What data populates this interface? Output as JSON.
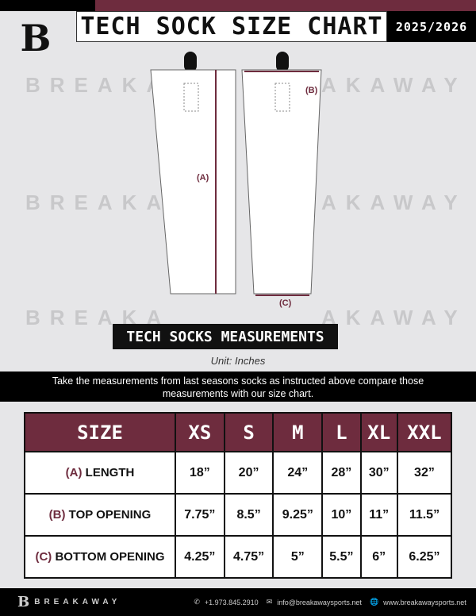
{
  "header": {
    "title": "TECH SOCK SIZE CHART",
    "season": "2025/2026"
  },
  "brand": {
    "name": "BREAKAWAY",
    "logo_letter": "B",
    "colors": {
      "maroon": "#6e2c3e",
      "black": "#000000"
    }
  },
  "diagram": {
    "length_label": "(A)",
    "top_label": "(B)",
    "bottom_label": "(C)"
  },
  "section_title": "TECH SOCKS MEASUREMENTS",
  "unit": "Unit: Inches",
  "instructions": "Take the measurements from last seasons socks as instructed above compare those measurements  with our size chart.",
  "table": {
    "header": [
      "SIZE",
      "XS",
      "S",
      "M",
      "L",
      "XL",
      "XXL"
    ],
    "rows": [
      {
        "tag": "(A)",
        "label": "LENGTH",
        "values": [
          "18”",
          "20”",
          "24”",
          "28”",
          "30”",
          "32”"
        ]
      },
      {
        "tag": "(B)",
        "label": "TOP OPENING",
        "values": [
          "7.75”",
          "8.5”",
          "9.25”",
          "10”",
          "11”",
          "11.5”"
        ]
      },
      {
        "tag": "(C)",
        "label": "BOTTOM OPENING",
        "values": [
          "4.25”",
          "4.75”",
          "5”",
          "5.5”",
          "6”",
          "6.25”"
        ]
      }
    ]
  },
  "footer": {
    "brand": "BREAKAWAY",
    "phone": "+1.973.845.2910",
    "email": "info@breakawaysports.net",
    "website": "www.breakawaysports.net"
  }
}
